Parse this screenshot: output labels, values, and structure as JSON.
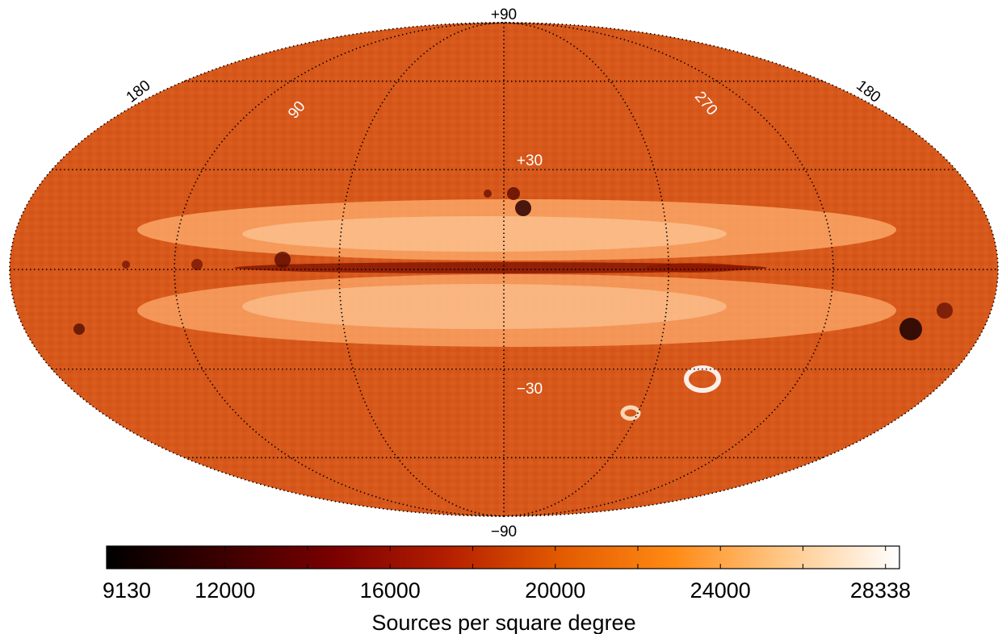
{
  "map": {
    "projection": "mollweide",
    "colormap": [
      "#000000",
      "#3a0000",
      "#7a0000",
      "#b41e00",
      "#e25a00",
      "#ff8a14",
      "#ffc98a",
      "#ffffff"
    ],
    "background_color": "#d6551a",
    "grid": true
  },
  "latitude_labels": {
    "north_pole": "+90",
    "lat_plus30": "+30",
    "lat_minus30": "−30",
    "south_pole": "−90"
  },
  "longitude_labels": {
    "left_edge": "180",
    "lon_90": "90",
    "lon_270": "270",
    "right_edge": "180"
  },
  "colorbar": {
    "min": 9130,
    "max": 28338,
    "ticks": [
      "9130",
      "12000",
      "16000",
      "20000",
      "24000",
      "28338"
    ],
    "tick_values": [
      9130,
      12000,
      16000,
      20000,
      24000,
      28338
    ],
    "title": "Sources per square degree"
  }
}
